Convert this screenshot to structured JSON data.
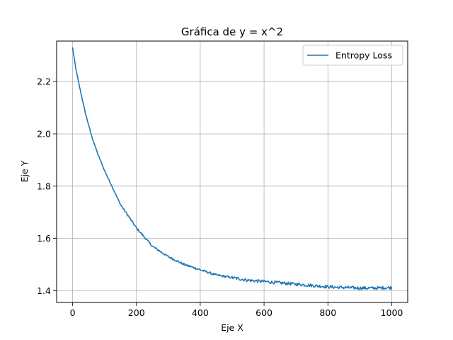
{
  "chart_data": {
    "type": "line",
    "title": "Gráfica de y = x^2",
    "xlabel": "Eje X",
    "ylabel": "Eje Y",
    "xlim": [
      -50,
      1050
    ],
    "ylim": [
      1.355,
      2.355
    ],
    "grid": true,
    "legend_position": "top-right",
    "x_ticks": [
      0,
      200,
      400,
      600,
      800,
      1000
    ],
    "x_tick_labels": [
      "0",
      "200",
      "400",
      "600",
      "800",
      "1000"
    ],
    "y_ticks": [
      1.4,
      1.6,
      1.8,
      2.0,
      2.2
    ],
    "y_tick_labels": [
      "1.4",
      "1.6",
      "1.8",
      "2.0",
      "2.2"
    ],
    "series": [
      {
        "name": "Entropy Loss",
        "color": "#1f77b4",
        "x": [
          0,
          10,
          20,
          40,
          60,
          80,
          100,
          150,
          200,
          250,
          300,
          350,
          400,
          450,
          500,
          550,
          600,
          650,
          700,
          750,
          800,
          850,
          900,
          950,
          1000
        ],
        "values": [
          2.33,
          2.25,
          2.19,
          2.08,
          1.99,
          1.92,
          1.86,
          1.73,
          1.64,
          1.57,
          1.53,
          1.5,
          1.48,
          1.46,
          1.45,
          1.44,
          1.435,
          1.43,
          1.425,
          1.42,
          1.415,
          1.412,
          1.41,
          1.41,
          1.412
        ]
      }
    ]
  }
}
